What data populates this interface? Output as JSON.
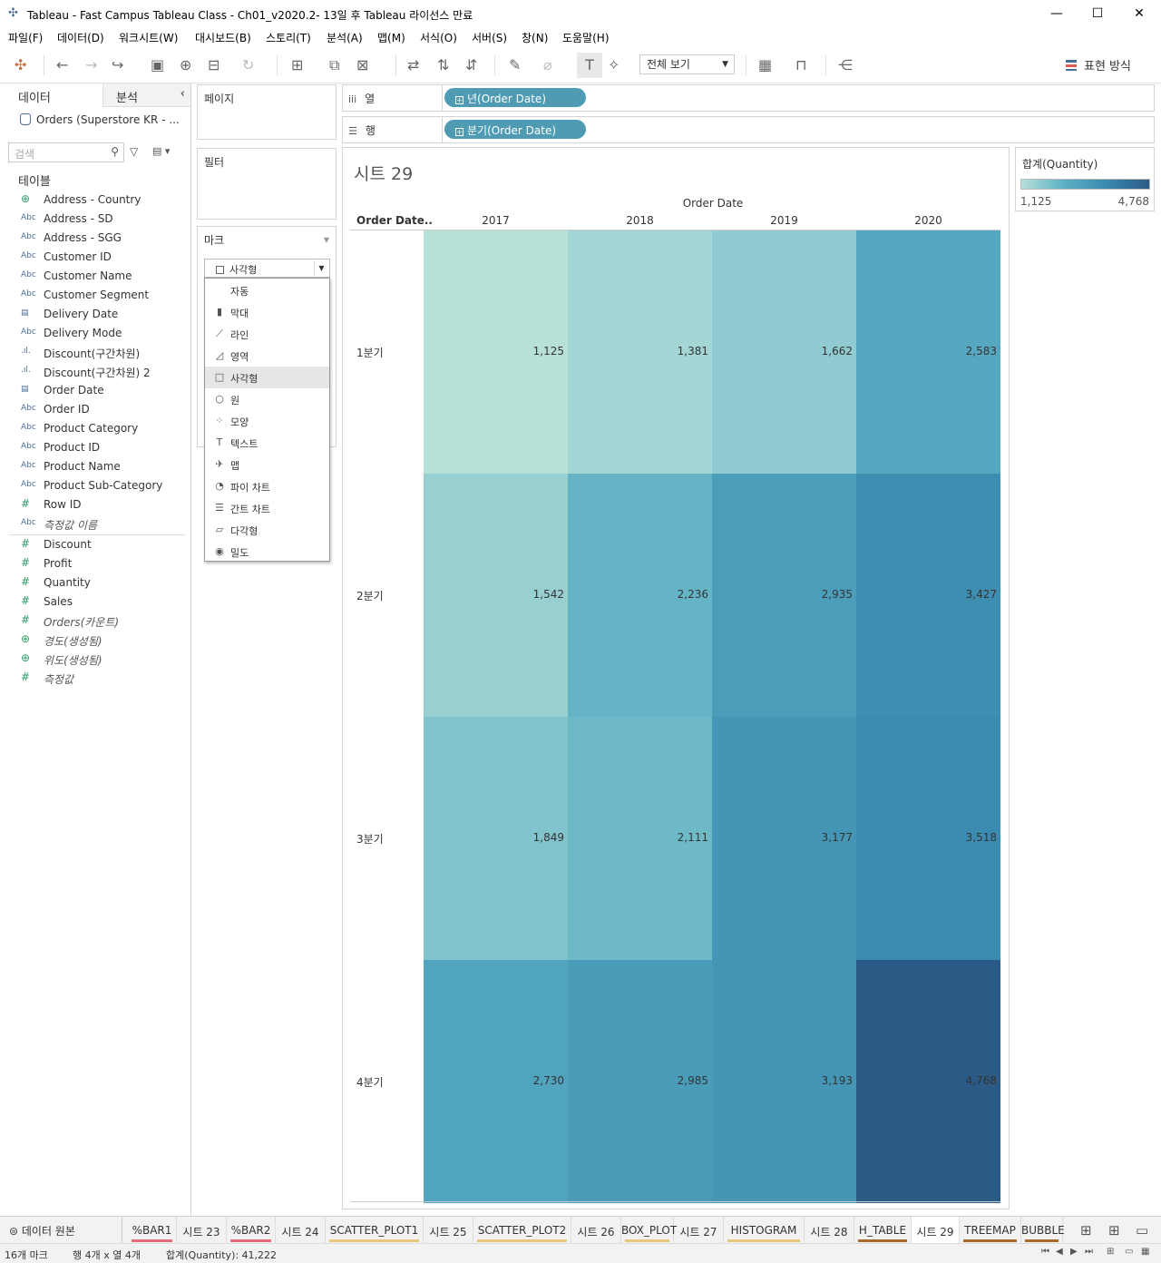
{
  "window": {
    "title": "Tableau - Fast Campus Tableau Class - Ch01_v2020.2- 13일 후 Tableau 라이선스 만료",
    "minimize": "—",
    "maximize": "☐",
    "close": "✕"
  },
  "menu": [
    "파일(F)",
    "데이터(D)",
    "워크시트(W)",
    "대시보드(B)",
    "스토리(T)",
    "분석(A)",
    "맵(M)",
    "서식(O)",
    "서버(S)",
    "창(N)",
    "도움말(H)"
  ],
  "toolbar": {
    "view_select": "전체 보기",
    "show_me": "표현 방식"
  },
  "left_pane": {
    "tab_data": "데이터",
    "tab_analysis": "분석",
    "datasource": "Orders (Superstore KR - ...",
    "search_placeholder": "검색",
    "tables_header": "테이블",
    "dimensions": [
      {
        "icon": "globe",
        "glyph": "⊕",
        "label": "Address - Country"
      },
      {
        "icon": "abc",
        "glyph": "Abc",
        "label": "Address - SD"
      },
      {
        "icon": "abc",
        "glyph": "Abc",
        "label": "Address - SGG"
      },
      {
        "icon": "abc",
        "glyph": "Abc",
        "label": "Customer ID"
      },
      {
        "icon": "abc",
        "glyph": "Abc",
        "label": "Customer Name"
      },
      {
        "icon": "abc",
        "glyph": "Abc",
        "label": "Customer Segment"
      },
      {
        "icon": "calendar",
        "glyph": "▤",
        "label": "Delivery Date"
      },
      {
        "icon": "abc",
        "glyph": "Abc",
        "label": "Delivery Mode"
      },
      {
        "icon": "bin",
        "glyph": ".ıl.",
        "label": "Discount(구간차원)"
      },
      {
        "icon": "bin",
        "glyph": ".ıl.",
        "label": "Discount(구간차원) 2"
      },
      {
        "icon": "calendar",
        "glyph": "▤",
        "label": "Order Date"
      },
      {
        "icon": "abc",
        "glyph": "Abc",
        "label": "Order ID"
      },
      {
        "icon": "abc",
        "glyph": "Abc",
        "label": "Product Category"
      },
      {
        "icon": "abc",
        "glyph": "Abc",
        "label": "Product ID"
      },
      {
        "icon": "abc",
        "glyph": "Abc",
        "label": "Product Name"
      },
      {
        "icon": "abc",
        "glyph": "Abc",
        "label": "Product Sub-Category"
      },
      {
        "icon": "number",
        "glyph": "#",
        "label": "Row ID"
      },
      {
        "icon": "abc",
        "glyph": "Abc",
        "label": "측정값 이름",
        "italic": true
      }
    ],
    "measures": [
      {
        "icon": "number",
        "glyph": "#",
        "label": "Discount"
      },
      {
        "icon": "number",
        "glyph": "#",
        "label": "Profit"
      },
      {
        "icon": "number",
        "glyph": "#",
        "label": "Quantity"
      },
      {
        "icon": "number",
        "glyph": "#",
        "label": "Sales"
      },
      {
        "icon": "number",
        "glyph": "#",
        "label": "Orders(카운트)",
        "italic": true
      },
      {
        "icon": "globe",
        "glyph": "⊕",
        "label": "경도(생성됨)",
        "italic": true
      },
      {
        "icon": "globe",
        "glyph": "⊕",
        "label": "위도(생성됨)",
        "italic": true
      },
      {
        "icon": "number",
        "glyph": "#",
        "label": "측정값",
        "italic": true
      }
    ]
  },
  "cards": {
    "pages": "페이지",
    "filters": "필터",
    "marks": "마크",
    "mark_type": "사각형"
  },
  "mark_menu": [
    {
      "icon": "",
      "label": "자동"
    },
    {
      "icon": "bar-chart",
      "glyph": "▮",
      "label": "막대"
    },
    {
      "icon": "line-chart",
      "glyph": "⟋",
      "label": "라인"
    },
    {
      "icon": "area-chart",
      "glyph": "◿",
      "label": "영역"
    },
    {
      "icon": "square",
      "glyph": "□",
      "label": "사각형",
      "selected": true
    },
    {
      "icon": "circle",
      "glyph": "○",
      "label": "원"
    },
    {
      "icon": "shapes",
      "glyph": "⁘",
      "label": "모양"
    },
    {
      "icon": "text",
      "glyph": "T",
      "label": "텍스트"
    },
    {
      "icon": "map",
      "glyph": "✈",
      "label": "맵"
    },
    {
      "icon": "pie-chart",
      "glyph": "◔",
      "label": "파이 차트"
    },
    {
      "icon": "gantt-chart",
      "glyph": "☰",
      "label": "간트 차트"
    },
    {
      "icon": "polygon",
      "glyph": "▱",
      "label": "다각형"
    },
    {
      "icon": "density",
      "glyph": "◉",
      "label": "밀도"
    }
  ],
  "shelves": {
    "columns_label": "열",
    "columns_pill": "년(Order Date)",
    "rows_label": "행",
    "rows_pill": "분기(Order Date)"
  },
  "legend": {
    "title": "합계(Quantity)",
    "min": "1,125",
    "max": "4,768"
  },
  "chart_data": {
    "type": "heatmap",
    "title": "시트 29",
    "column_header": "Order Date",
    "row_header": "Order Date..",
    "columns": [
      "2017",
      "2018",
      "2019",
      "2020"
    ],
    "rows": [
      "1분기",
      "2분기",
      "3분기",
      "4분기"
    ],
    "values": [
      [
        1125,
        1381,
        1662,
        2583
      ],
      [
        1542,
        2236,
        2935,
        3427
      ],
      [
        1849,
        2111,
        3177,
        3518
      ],
      [
        2730,
        2985,
        3193,
        4768
      ]
    ],
    "labels": [
      [
        "1,125",
        "1,381",
        "1,662",
        "2,583"
      ],
      [
        "1,542",
        "2,236",
        "2,935",
        "3,427"
      ],
      [
        "1,849",
        "2,111",
        "3,177",
        "3,518"
      ],
      [
        "2,730",
        "2,985",
        "3,193",
        "4,768"
      ]
    ],
    "color_range": [
      "#b7e0d9",
      "#2b5a86"
    ]
  },
  "tabs": {
    "datasource": "데이터 원본",
    "sheets": [
      {
        "label": "%BAR1",
        "color": "#e8697a"
      },
      {
        "label": "시트 23",
        "color": ""
      },
      {
        "label": "%BAR2",
        "color": "#e8697a"
      },
      {
        "label": "시트 24",
        "color": ""
      },
      {
        "label": "SCATTER_PLOT1",
        "color": "#e8c77a"
      },
      {
        "label": "시트 25",
        "color": ""
      },
      {
        "label": "SCATTER_PLOT2",
        "color": "#e8c77a"
      },
      {
        "label": "시트 26",
        "color": ""
      },
      {
        "label": "BOX_PLOT",
        "color": "#e8c77a"
      },
      {
        "label": "시트 27",
        "color": ""
      },
      {
        "label": "HISTOGRAM",
        "color": "#e8c77a"
      },
      {
        "label": "시트 28",
        "color": ""
      },
      {
        "label": "H_TABLE",
        "color": "#a86a28"
      },
      {
        "label": "시트 29",
        "color": "",
        "active": true
      },
      {
        "label": "TREEMAP",
        "color": "#a86a28"
      },
      {
        "label": "BUBBLE",
        "color": "#a86a28"
      }
    ]
  },
  "status": {
    "marks": "16개 마크",
    "rows_cols": "행 4개 x 열 4개",
    "sum": "합계(Quantity): 41,222"
  }
}
